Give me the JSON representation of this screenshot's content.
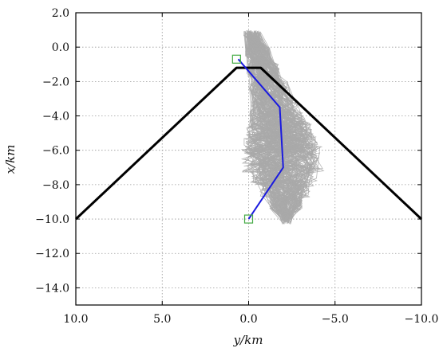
{
  "chart_data": {
    "type": "line",
    "title": "",
    "xlabel": "y/km",
    "ylabel": "x/km",
    "x_reversed": true,
    "xlim": [
      10.0,
      -10.0
    ],
    "ylim": [
      -15.0,
      2.0
    ],
    "x_ticks": [
      10.0,
      5.0,
      0.0,
      -5.0,
      -10.0
    ],
    "x_tick_labels": [
      "10.0",
      "5.0",
      "0.0",
      "−5.0",
      "−10.0"
    ],
    "y_ticks": [
      2.0,
      0.0,
      -2.0,
      -4.0,
      -6.0,
      -8.0,
      -10.0,
      -12.0,
      -14.0
    ],
    "y_tick_labels": [
      "2.0",
      "0.0",
      "−2.0",
      "−4.0",
      "−6.0",
      "−8.0",
      "−10.0",
      "−12.0",
      "−14.0"
    ],
    "grid": true,
    "grid_style": "dotted",
    "legend": "none",
    "series": [
      {
        "kind": "boundary",
        "color": "#000000",
        "points": [
          [
            10.0,
            -10.0
          ],
          [
            0.7,
            -1.2
          ],
          [
            -0.7,
            -1.2
          ],
          [
            -10.0,
            -10.0
          ]
        ]
      },
      {
        "kind": "estimated-path",
        "color": "#1a1adf",
        "points": [
          [
            0.0,
            -10.0
          ],
          [
            -2.0,
            -7.0
          ],
          [
            -1.8,
            -3.5
          ],
          [
            0.6,
            -0.7
          ]
        ]
      },
      {
        "kind": "sampled-trajectories",
        "color": "#a9a9a9",
        "count": 160,
        "anchors": [
          [
            -0.2,
            0.8
          ],
          [
            -1.5,
            -3.5
          ],
          [
            -2.0,
            -6.5
          ],
          [
            -2.2,
            -10.0
          ]
        ],
        "spread": [
          0.5,
          1.4,
          2.4,
          0.5
        ]
      }
    ],
    "markers": [
      {
        "shape": "square",
        "color": "#44aa44",
        "points": [
          [
            0.0,
            -10.0
          ],
          [
            0.7,
            -0.7
          ]
        ]
      }
    ]
  }
}
